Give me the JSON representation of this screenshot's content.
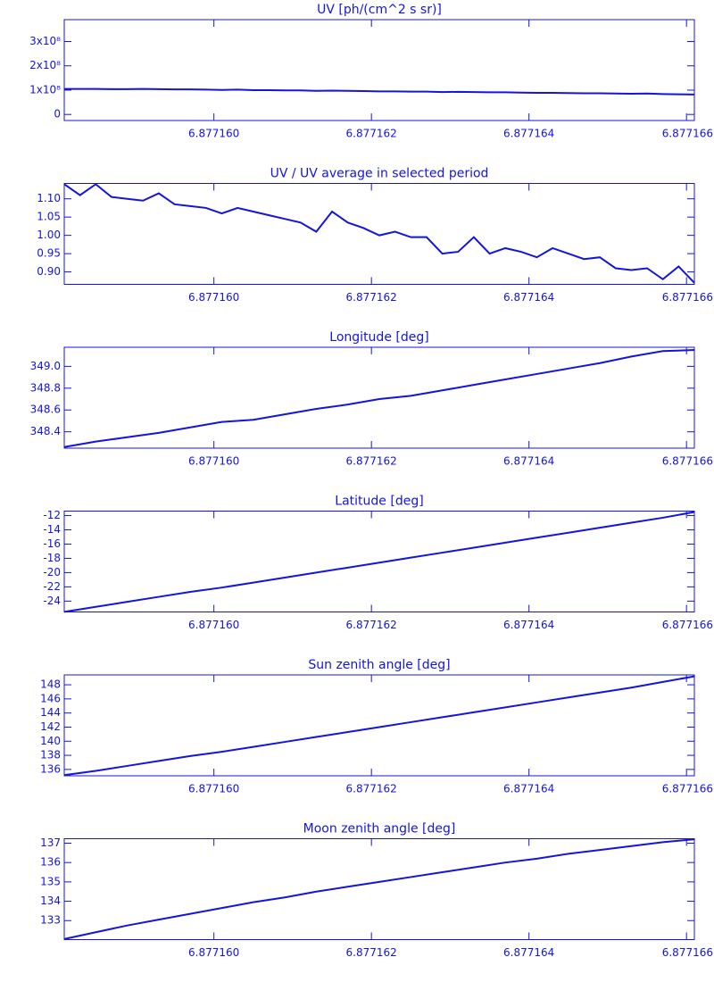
{
  "chart_data": [
    {
      "type": "line",
      "title": "UV [ph/(cm^2 s sr)]",
      "x": [
        6.8771581,
        6.8771583,
        6.8771585,
        6.8771587,
        6.8771589,
        6.8771591,
        6.8771593,
        6.8771595,
        6.8771597,
        6.8771599,
        6.8771601,
        6.8771603,
        6.8771605,
        6.8771607,
        6.8771609,
        6.8771611,
        6.8771613,
        6.8771615,
        6.8771617,
        6.8771619,
        6.8771621,
        6.8771623,
        6.8771625,
        6.8771627,
        6.8771629,
        6.8771631,
        6.8771633,
        6.8771635,
        6.8771637,
        6.8771639,
        6.8771641,
        6.8771643,
        6.8771645,
        6.8771647,
        6.8771649,
        6.8771651,
        6.8771653,
        6.8771655,
        6.8771657,
        6.8771659,
        6.8771661
      ],
      "values": [
        105000000.0,
        105000000.0,
        105000000.0,
        104000000.0,
        104000000.0,
        105000000.0,
        104000000.0,
        103000000.0,
        103000000.0,
        102000000.0,
        101000000.0,
        102000000.0,
        100000000.0,
        100000000.0,
        99000000.0,
        99000000.0,
        97000000.0,
        98000000.0,
        97000000.0,
        96000000.0,
        95000000.0,
        95000000.0,
        94000000.0,
        94000000.0,
        92000000.0,
        93000000.0,
        92000000.0,
        91000000.0,
        91000000.0,
        90000000.0,
        89000000.0,
        89000000.0,
        88000000.0,
        87000000.0,
        87000000.0,
        86000000.0,
        85000000.0,
        86000000.0,
        84000000.0,
        83000000.0,
        82000000.0
      ],
      "color": "#1414e0",
      "xlim": [
        6.8771581,
        6.8771661
      ],
      "xticks": [
        {
          "value": 6.87716,
          "label": "6.877160"
        },
        6.877162,
        6.877164,
        6.877166
      ],
      "ylim": [
        -25000000.0,
        390000000.0
      ],
      "yticks": [
        0,
        {
          "value": 100000000.0,
          "label": "1x10⁸"
        },
        {
          "value": 200000000.0,
          "label": "2x10⁸"
        },
        {
          "value": 300000000.0,
          "label": "3x10⁸"
        }
      ]
    },
    {
      "type": "line",
      "title": "UV / UV average in selected period",
      "x": [
        6.8771581,
        6.8771583,
        6.8771585,
        6.8771587,
        6.8771589,
        6.8771591,
        6.8771593,
        6.8771595,
        6.8771597,
        6.8771599,
        6.8771601,
        6.8771603,
        6.8771605,
        6.8771607,
        6.8771609,
        6.8771611,
        6.8771613,
        6.8771615,
        6.8771617,
        6.8771619,
        6.8771621,
        6.8771623,
        6.8771625,
        6.8771627,
        6.8771629,
        6.8771631,
        6.8771633,
        6.8771635,
        6.8771637,
        6.8771639,
        6.8771641,
        6.8771643,
        6.8771645,
        6.8771647,
        6.8771649,
        6.8771651,
        6.8771653,
        6.8771655,
        6.8771657,
        6.8771659,
        6.8771661
      ],
      "values": [
        1.14,
        1.11,
        1.14,
        1.105,
        1.1,
        1.095,
        1.115,
        1.085,
        1.08,
        1.075,
        1.06,
        1.075,
        1.065,
        1.055,
        1.045,
        1.035,
        1.01,
        1.065,
        1.035,
        1.02,
        1.0,
        1.01,
        0.995,
        0.995,
        0.95,
        0.955,
        0.995,
        0.95,
        0.965,
        0.955,
        0.94,
        0.965,
        0.95,
        0.935,
        0.94,
        0.91,
        0.905,
        0.91,
        0.88,
        0.915,
        0.87
      ],
      "color": "#1414e0",
      "xlim": [
        6.8771581,
        6.8771661
      ],
      "xticks": [
        {
          "value": 6.87716,
          "label": "6.877160"
        },
        6.877162,
        6.877164,
        6.877166
      ],
      "ylim": [
        0.866,
        1.142
      ],
      "yticks": [
        {
          "value": 0.9,
          "label": "0.90"
        },
        {
          "value": 0.95,
          "label": "0.95"
        },
        {
          "value": 1.0,
          "label": "1.00"
        },
        {
          "value": 1.05,
          "label": "1.05"
        },
        {
          "value": 1.1,
          "label": "1.10"
        }
      ]
    },
    {
      "type": "line",
      "title": "Longitude [deg]",
      "x": [
        6.8771581,
        6.8771585,
        6.8771589,
        6.8771593,
        6.8771597,
        6.8771601,
        6.8771605,
        6.8771609,
        6.8771613,
        6.8771617,
        6.8771621,
        6.8771625,
        6.8771629,
        6.8771633,
        6.8771637,
        6.8771641,
        6.8771645,
        6.8771649,
        6.8771653,
        6.8771657,
        6.8771661
      ],
      "values": [
        348.26,
        348.31,
        348.35,
        348.39,
        348.44,
        348.49,
        348.51,
        348.56,
        348.61,
        348.65,
        348.7,
        348.73,
        348.78,
        348.83,
        348.88,
        348.93,
        348.98,
        349.03,
        349.09,
        349.14,
        349.15
      ],
      "color": "#1414e0",
      "xlim": [
        6.8771581,
        6.8771661
      ],
      "xticks": [
        {
          "value": 6.87716,
          "label": "6.877160"
        },
        6.877162,
        6.877164,
        6.877166
      ],
      "ylim": [
        348.25,
        349.175
      ],
      "yticks": [
        348.4,
        348.6,
        348.8,
        {
          "value": 349,
          "label": "349.0"
        }
      ]
    },
    {
      "type": "line",
      "title": "Latitude [deg]",
      "x": [
        6.8771581,
        6.8771585,
        6.8771589,
        6.8771593,
        6.8771597,
        6.8771601,
        6.8771605,
        6.8771609,
        6.8771613,
        6.8771617,
        6.8771621,
        6.8771625,
        6.8771629,
        6.8771633,
        6.8771637,
        6.8771641,
        6.8771645,
        6.8771649,
        6.8771653,
        6.8771657,
        6.8771661
      ],
      "values": [
        -25.5,
        -24.8,
        -24.1,
        -23.4,
        -22.7,
        -22.1,
        -21.4,
        -20.7,
        -20.0,
        -19.3,
        -18.6,
        -17.9,
        -17.2,
        -16.5,
        -15.8,
        -15.1,
        -14.4,
        -13.7,
        -13.0,
        -12.3,
        -11.5
      ],
      "color": "#1414e0",
      "xlim": [
        6.8771581,
        6.8771661
      ],
      "xticks": [
        {
          "value": 6.87716,
          "label": "6.877160"
        },
        6.877162,
        6.877164,
        6.877166
      ],
      "ylim": [
        -25.52,
        -11.37
      ],
      "yticks": [
        -24,
        -22,
        -20,
        -18,
        -16,
        -14,
        -12
      ]
    },
    {
      "type": "line",
      "title": "Sun zenith angle [deg]",
      "x": [
        6.8771581,
        6.8771585,
        6.8771589,
        6.8771593,
        6.8771597,
        6.8771601,
        6.8771605,
        6.8771609,
        6.8771613,
        6.8771617,
        6.8771621,
        6.8771625,
        6.8771629,
        6.8771633,
        6.8771637,
        6.8771641,
        6.8771645,
        6.8771649,
        6.8771653,
        6.8771657,
        6.8771661
      ],
      "values": [
        135.2,
        135.8,
        136.5,
        137.2,
        137.9,
        138.5,
        139.2,
        139.9,
        140.6,
        141.3,
        142.0,
        142.7,
        143.4,
        144.1,
        144.8,
        145.5,
        146.2,
        146.9,
        147.6,
        148.4,
        149.2
      ],
      "color": "#1414e0",
      "xlim": [
        6.8771581,
        6.8771661
      ],
      "xticks": [
        {
          "value": 6.87716,
          "label": "6.877160"
        },
        6.877162,
        6.877164,
        6.877166
      ],
      "ylim": [
        135.1,
        149.4
      ],
      "yticks": [
        136,
        138,
        140,
        142,
        144,
        146,
        148
      ]
    },
    {
      "type": "line",
      "title": "Moon zenith angle [deg]",
      "x": [
        6.8771581,
        6.8771585,
        6.8771589,
        6.8771593,
        6.8771597,
        6.8771601,
        6.8771605,
        6.8771609,
        6.8771613,
        6.8771617,
        6.8771621,
        6.8771625,
        6.8771629,
        6.8771633,
        6.8771637,
        6.8771641,
        6.8771645,
        6.8771649,
        6.8771653,
        6.8771657,
        6.8771661
      ],
      "values": [
        132.05,
        132.4,
        132.75,
        133.05,
        133.35,
        133.65,
        133.95,
        134.2,
        134.5,
        134.75,
        135.0,
        135.25,
        135.5,
        135.75,
        136.0,
        136.2,
        136.45,
        136.65,
        136.85,
        137.05,
        137.2
      ],
      "color": "#1414e0",
      "xlim": [
        6.8771581,
        6.8771661
      ],
      "xticks": [
        {
          "value": 6.87716,
          "label": "6.877160"
        },
        6.877162,
        6.877164,
        6.877166
      ],
      "ylim": [
        132.02,
        137.23
      ],
      "yticks": [
        133,
        134,
        135,
        136,
        137
      ]
    }
  ]
}
